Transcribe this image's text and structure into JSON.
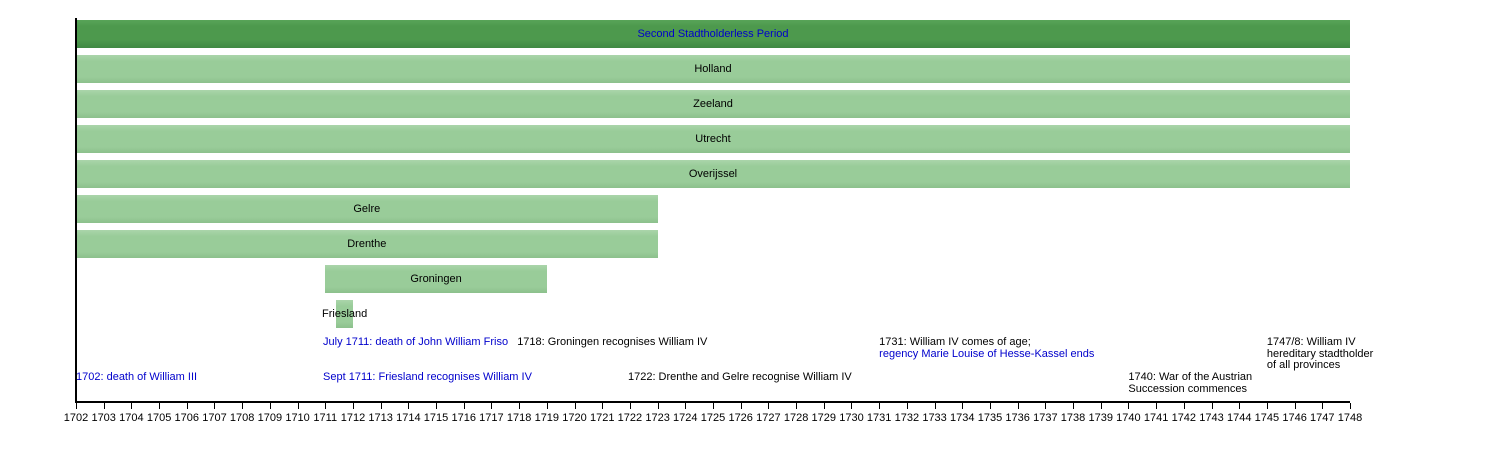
{
  "page": {
    "background_color": "#ffffff"
  },
  "chart_data": {
    "type": "bar",
    "subtype": "horizontal-span-timeline",
    "title": "Second Stadtholderless Period",
    "x_axis": {
      "min": 1702,
      "max": 1748,
      "tick_interval": 1,
      "tick_labels": [
        "1702",
        "1703",
        "1704",
        "1705",
        "1706",
        "1707",
        "1708",
        "1709",
        "1710",
        "1711",
        "1712",
        "1713",
        "1714",
        "1715",
        "1716",
        "1717",
        "1718",
        "1719",
        "1720",
        "1721",
        "1722",
        "1723",
        "1724",
        "1725",
        "1726",
        "1727",
        "1728",
        "1729",
        "1730",
        "1731",
        "1732",
        "1733",
        "1734",
        "1735",
        "1736",
        "1737",
        "1738",
        "1739",
        "1740",
        "1741",
        "1742",
        "1743",
        "1744",
        "1745",
        "1746",
        "1747",
        "1748"
      ]
    },
    "colors": {
      "period_bar": "#4d994d",
      "province_bar": "#99cc99",
      "link_text": "#0000cc",
      "plain_text": "#000000",
      "axis": "#000000"
    },
    "rows": [
      {
        "label": "Second Stadtholderless Period",
        "start": 1702,
        "end": 1748,
        "kind": "period",
        "label_is_link": true
      },
      {
        "label": "Holland",
        "start": 1702,
        "end": 1748,
        "kind": "province",
        "label_is_link": false
      },
      {
        "label": "Zeeland",
        "start": 1702,
        "end": 1748,
        "kind": "province",
        "label_is_link": false
      },
      {
        "label": "Utrecht",
        "start": 1702,
        "end": 1748,
        "kind": "province",
        "label_is_link": false
      },
      {
        "label": "Overijssel",
        "start": 1702,
        "end": 1748,
        "kind": "province",
        "label_is_link": false
      },
      {
        "label": "Gelre",
        "start": 1702,
        "end": 1723,
        "kind": "province",
        "label_is_link": false
      },
      {
        "label": "Drenthe",
        "start": 1702,
        "end": 1723,
        "kind": "province",
        "label_is_link": false
      },
      {
        "label": "Groningen",
        "start": 1711,
        "end": 1719,
        "kind": "province",
        "label_is_link": false
      },
      {
        "label": "Friesland",
        "start": 1711.4,
        "end": 1712,
        "kind": "province",
        "label_is_link": false
      }
    ],
    "annotations": [
      {
        "anchor_year": 1710.92,
        "level": "upper",
        "lines": [
          {
            "text": "July 1711: death of John William Friso",
            "link": true
          }
        ]
      },
      {
        "anchor_year": 1717.93,
        "level": "upper",
        "lines": [
          {
            "text": "1718: Groningen recognises William IV",
            "link": false
          }
        ]
      },
      {
        "anchor_year": 1731,
        "level": "upper",
        "lines": [
          {
            "text": "1731: William IV comes of age;",
            "link": false
          },
          {
            "text": "regency Marie Louise of Hesse-Kassel ends",
            "link": true
          }
        ]
      },
      {
        "anchor_year": 1745,
        "level": "upper",
        "lines": [
          {
            "text": "1747/8: William IV",
            "link": false
          },
          {
            "text": "hereditary stadtholder",
            "link": false
          },
          {
            "text": "of all provinces",
            "link": false
          }
        ]
      },
      {
        "anchor_year": 1702,
        "level": "lower",
        "lines": [
          {
            "text": "1702: death of William III",
            "link": true
          }
        ]
      },
      {
        "anchor_year": 1710.92,
        "level": "lower",
        "lines": [
          {
            "text": "Sept 1711: Friesland recognises William IV",
            "link": true
          }
        ]
      },
      {
        "anchor_year": 1721.93,
        "level": "lower",
        "lines": [
          {
            "text": "1722: Drenthe and Gelre recognise William IV",
            "link": false
          }
        ]
      },
      {
        "anchor_year": 1740,
        "level": "lower",
        "lines": [
          {
            "text": "1740: War of the Austrian",
            "link": false
          },
          {
            "text": "Succession commences",
            "link": false
          }
        ]
      }
    ]
  }
}
